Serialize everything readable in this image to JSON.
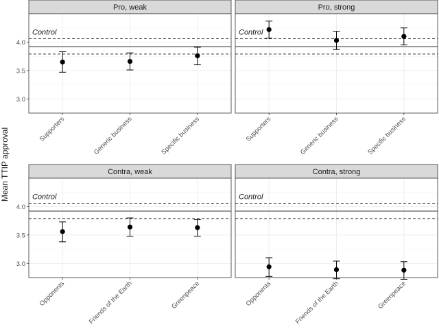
{
  "chart_data": {
    "type": "scatter",
    "ylabel": "Mean TTIP approval",
    "ylim": [
      2.75,
      4.5
    ],
    "yticks": [
      3.0,
      3.5,
      4.0
    ],
    "ytick_labels": [
      "3.0",
      "3.5",
      "4.0"
    ],
    "control": {
      "label": "Control",
      "mean": 3.92,
      "ci_low": 3.79,
      "ci_high": 4.06
    },
    "panels": [
      {
        "title": "Pro, weak",
        "categories": [
          "Supporters",
          "Generic business",
          "Specific business"
        ],
        "values": [
          3.65,
          3.66,
          3.76
        ],
        "ci_low": [
          3.47,
          3.51,
          3.6
        ],
        "ci_high": [
          3.83,
          3.81,
          3.91
        ]
      },
      {
        "title": "Pro, strong",
        "categories": [
          "Supporters",
          "Generic business",
          "Specific business"
        ],
        "values": [
          4.22,
          4.03,
          4.1
        ],
        "ci_low": [
          4.07,
          3.87,
          3.95
        ],
        "ci_high": [
          4.37,
          4.19,
          4.25
        ]
      },
      {
        "title": "Contra, weak",
        "categories": [
          "Opponents",
          "Friends of the Earth",
          "Greenpeace"
        ],
        "values": [
          3.56,
          3.64,
          3.63
        ],
        "ci_low": [
          3.38,
          3.48,
          3.48
        ],
        "ci_high": [
          3.73,
          3.8,
          3.77
        ]
      },
      {
        "title": "Contra, strong",
        "categories": [
          "Opponents",
          "Friends of the Earth",
          "Greenpeace"
        ],
        "values": [
          2.94,
          2.89,
          2.88
        ],
        "ci_low": [
          2.77,
          2.73,
          2.72
        ],
        "ci_high": [
          3.1,
          3.04,
          3.03
        ]
      }
    ]
  }
}
